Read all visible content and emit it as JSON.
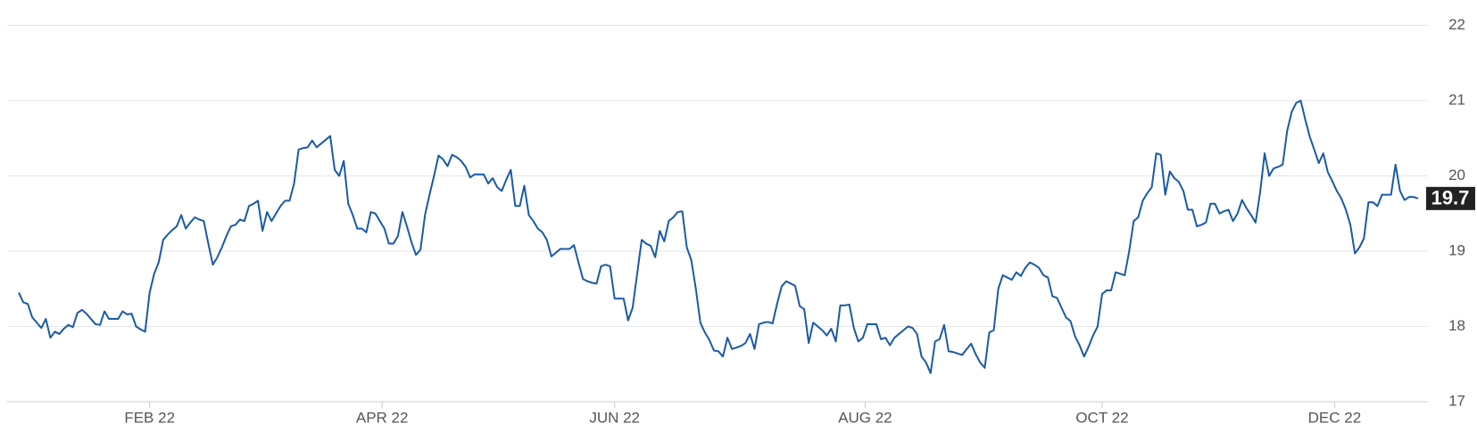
{
  "chart_data": {
    "type": "line",
    "color": "#1a5aa6",
    "grid": true,
    "y_axis_side": "right",
    "values": [
      18.45,
      18.32,
      18.3,
      18.12,
      18.05,
      17.98,
      18.1,
      17.85,
      17.93,
      17.9,
      17.97,
      18.02,
      17.99,
      18.18,
      18.22,
      18.17,
      18.1,
      18.03,
      18.02,
      18.2,
      18.1,
      18.1,
      18.1,
      18.2,
      18.16,
      18.17,
      18.0,
      17.96,
      17.93,
      18.45,
      18.7,
      18.85,
      19.15,
      19.22,
      19.28,
      19.33,
      19.48,
      19.3,
      19.38,
      19.45,
      19.42,
      19.4,
      19.1,
      18.82,
      18.92,
      19.05,
      19.2,
      19.33,
      19.35,
      19.42,
      19.4,
      19.6,
      19.63,
      19.67,
      19.27,
      19.52,
      19.4,
      19.5,
      19.6,
      19.67,
      19.67,
      19.9,
      20.35,
      20.37,
      20.38,
      20.47,
      20.38,
      20.43,
      20.48,
      20.53,
      20.08,
      20.0,
      20.2,
      19.63,
      19.48,
      19.3,
      19.3,
      19.25,
      19.52,
      19.5,
      19.4,
      19.3,
      19.1,
      19.1,
      19.2,
      19.52,
      19.33,
      19.12,
      18.95,
      19.02,
      19.48,
      19.75,
      20.0,
      20.27,
      20.22,
      20.13,
      20.28,
      20.25,
      20.2,
      20.12,
      19.98,
      20.02,
      20.02,
      20.02,
      19.9,
      19.97,
      19.85,
      19.8,
      19.95,
      20.08,
      19.6,
      19.6,
      19.87,
      19.48,
      19.4,
      19.3,
      19.25,
      19.15,
      18.93,
      18.98,
      19.03,
      19.03,
      19.03,
      19.08,
      18.85,
      18.63,
      18.6,
      18.58,
      18.57,
      18.8,
      18.82,
      18.8,
      18.37,
      18.37,
      18.37,
      18.08,
      18.25,
      18.7,
      19.15,
      19.1,
      19.07,
      18.92,
      19.27,
      19.13,
      19.4,
      19.45,
      19.52,
      19.53,
      19.05,
      18.88,
      18.5,
      18.05,
      17.92,
      17.82,
      17.68,
      17.67,
      17.6,
      17.85,
      17.7,
      17.72,
      17.74,
      17.78,
      17.9,
      17.7,
      18.03,
      18.05,
      18.06,
      18.04,
      18.3,
      18.53,
      18.6,
      18.57,
      18.54,
      18.27,
      18.23,
      17.78,
      18.05,
      18.0,
      17.95,
      17.88,
      17.97,
      17.8,
      18.28,
      18.28,
      18.29,
      17.98,
      17.8,
      17.85,
      18.03,
      18.03,
      18.03,
      17.83,
      17.85,
      17.75,
      17.85,
      17.9,
      17.95,
      18.0,
      17.98,
      17.9,
      17.6,
      17.52,
      17.38,
      17.8,
      17.83,
      18.02,
      17.67,
      17.66,
      17.64,
      17.62,
      17.7,
      17.77,
      17.63,
      17.52,
      17.45,
      17.92,
      17.95,
      18.5,
      18.68,
      18.65,
      18.62,
      18.72,
      18.67,
      18.78,
      18.85,
      18.82,
      18.78,
      18.68,
      18.65,
      18.4,
      18.38,
      18.25,
      18.12,
      18.07,
      17.87,
      17.75,
      17.6,
      17.73,
      17.88,
      18.0,
      18.43,
      18.48,
      18.48,
      18.72,
      18.7,
      18.68,
      19.0,
      19.4,
      19.45,
      19.67,
      19.77,
      19.85,
      20.3,
      20.28,
      19.75,
      20.06,
      19.97,
      19.92,
      19.8,
      19.55,
      19.55,
      19.33,
      19.35,
      19.38,
      19.63,
      19.63,
      19.5,
      19.53,
      19.55,
      19.4,
      19.5,
      19.68,
      19.57,
      19.48,
      19.38,
      19.78,
      20.3,
      20.0,
      20.1,
      20.12,
      20.15,
      20.6,
      20.85,
      20.97,
      21.0,
      20.75,
      20.52,
      20.35,
      20.17,
      20.3,
      20.05,
      19.93,
      19.8,
      19.7,
      19.55,
      19.35,
      18.97,
      19.05,
      19.17,
      19.65,
      19.65,
      19.6,
      19.75,
      19.75,
      19.75,
      20.15,
      19.8,
      19.68,
      19.72,
      19.72,
      19.7
    ],
    "xlim": [
      0,
      310
    ],
    "xticks": [
      {
        "value": 29,
        "label": "FEB 22"
      },
      {
        "value": 80.5,
        "label": "APR 22"
      },
      {
        "value": 132,
        "label": "JUN 22"
      },
      {
        "value": 187.5,
        "label": "AUG 22"
      },
      {
        "value": 240,
        "label": "OCT 22"
      },
      {
        "value": 291.5,
        "label": "DEC 22"
      }
    ],
    "ylim": [
      17,
      22
    ],
    "yticks": [
      17,
      18,
      19,
      20,
      21,
      22
    ]
  }
}
